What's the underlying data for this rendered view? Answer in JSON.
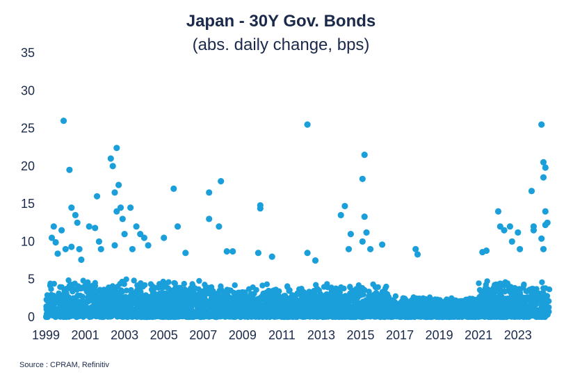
{
  "chart_data": {
    "type": "scatter",
    "title": "Japan - 30Y Gov. Bonds",
    "subtitle": "(abs. daily change, bps)",
    "source": "Source : CPRAM, Refinitiv",
    "xlabel": "",
    "ylabel": "",
    "xlim": [
      1999.0,
      2024.6
    ],
    "ylim": [
      0,
      35
    ],
    "x_tick_labels": [
      "1999",
      "2001",
      "2003",
      "2005",
      "2007",
      "2009",
      "2011",
      "2013",
      "2015",
      "2017",
      "2019",
      "2021",
      "2023"
    ],
    "y_tick_labels": [
      "0",
      "5",
      "10",
      "15",
      "20",
      "25",
      "30",
      "35"
    ],
    "marker_color": "#1a9fdb",
    "grid": false,
    "legend": "none",
    "dense_band": [
      {
        "x0": 1999.0,
        "x1": 2007.5,
        "ymax": 4.5
      },
      {
        "x0": 2007.5,
        "x1": 2012.0,
        "ymax": 4.0
      },
      {
        "x0": 2012.0,
        "x1": 2016.5,
        "ymax": 4.0
      },
      {
        "x0": 2016.5,
        "x1": 2021.0,
        "ymax": 2.5
      },
      {
        "x0": 2021.0,
        "x1": 2024.6,
        "ymax": 4.5
      }
    ],
    "points": [
      {
        "x": 1999.9,
        "y": 26.0
      },
      {
        "x": 2000.2,
        "y": 19.5
      },
      {
        "x": 2000.3,
        "y": 14.5
      },
      {
        "x": 2000.5,
        "y": 13.5
      },
      {
        "x": 2000.6,
        "y": 12.5
      },
      {
        "x": 1999.4,
        "y": 12.0
      },
      {
        "x": 1999.3,
        "y": 10.5
      },
      {
        "x": 1999.5,
        "y": 9.9
      },
      {
        "x": 1999.8,
        "y": 11.5
      },
      {
        "x": 2000.0,
        "y": 9.0
      },
      {
        "x": 2000.3,
        "y": 9.3
      },
      {
        "x": 2000.7,
        "y": 9.0
      },
      {
        "x": 2000.8,
        "y": 7.6
      },
      {
        "x": 1999.6,
        "y": 8.4
      },
      {
        "x": 2001.2,
        "y": 12.0
      },
      {
        "x": 2001.5,
        "y": 11.8
      },
      {
        "x": 2001.6,
        "y": 16.0
      },
      {
        "x": 2001.7,
        "y": 10.0
      },
      {
        "x": 2002.3,
        "y": 21.0
      },
      {
        "x": 2002.4,
        "y": 20.0
      },
      {
        "x": 2002.6,
        "y": 22.4
      },
      {
        "x": 2002.7,
        "y": 17.5
      },
      {
        "x": 2002.5,
        "y": 16.5
      },
      {
        "x": 2002.6,
        "y": 14.0
      },
      {
        "x": 2002.8,
        "y": 14.5
      },
      {
        "x": 2003.3,
        "y": 14.5
      },
      {
        "x": 2002.9,
        "y": 13.0
      },
      {
        "x": 2003.6,
        "y": 12.0
      },
      {
        "x": 2003.0,
        "y": 11.0
      },
      {
        "x": 2003.8,
        "y": 11.0
      },
      {
        "x": 2004.0,
        "y": 10.5
      },
      {
        "x": 2004.2,
        "y": 9.5
      },
      {
        "x": 2003.4,
        "y": 9.0
      },
      {
        "x": 2002.5,
        "y": 9.5
      },
      {
        "x": 2001.8,
        "y": 9.0
      },
      {
        "x": 2005.0,
        "y": 10.5
      },
      {
        "x": 2005.5,
        "y": 17.0
      },
      {
        "x": 2005.7,
        "y": 12.0
      },
      {
        "x": 2006.1,
        "y": 8.5
      },
      {
        "x": 2007.3,
        "y": 16.5
      },
      {
        "x": 2007.3,
        "y": 13.0
      },
      {
        "x": 2007.9,
        "y": 18.0
      },
      {
        "x": 2007.8,
        "y": 12.0
      },
      {
        "x": 2008.2,
        "y": 8.7
      },
      {
        "x": 2008.5,
        "y": 8.7
      },
      {
        "x": 2009.9,
        "y": 14.8
      },
      {
        "x": 2009.9,
        "y": 14.4
      },
      {
        "x": 2009.8,
        "y": 8.5
      },
      {
        "x": 2010.5,
        "y": 8.0
      },
      {
        "x": 2012.3,
        "y": 25.5
      },
      {
        "x": 2012.3,
        "y": 8.5
      },
      {
        "x": 2012.7,
        "y": 7.5
      },
      {
        "x": 2014.0,
        "y": 13.5
      },
      {
        "x": 2014.2,
        "y": 14.7
      },
      {
        "x": 2014.4,
        "y": 9.0
      },
      {
        "x": 2014.5,
        "y": 11.0
      },
      {
        "x": 2015.2,
        "y": 21.5
      },
      {
        "x": 2015.1,
        "y": 18.3
      },
      {
        "x": 2015.2,
        "y": 13.3
      },
      {
        "x": 2015.1,
        "y": 10.0
      },
      {
        "x": 2015.3,
        "y": 11.2
      },
      {
        "x": 2015.5,
        "y": 9.0
      },
      {
        "x": 2016.1,
        "y": 9.6
      },
      {
        "x": 2017.8,
        "y": 9.0
      },
      {
        "x": 2017.9,
        "y": 8.3
      },
      {
        "x": 2021.2,
        "y": 8.6
      },
      {
        "x": 2021.4,
        "y": 8.8
      },
      {
        "x": 2022.0,
        "y": 14.0
      },
      {
        "x": 2022.1,
        "y": 12.0
      },
      {
        "x": 2022.3,
        "y": 11.5
      },
      {
        "x": 2022.6,
        "y": 12.0
      },
      {
        "x": 2023.0,
        "y": 11.2
      },
      {
        "x": 2022.7,
        "y": 10.0
      },
      {
        "x": 2023.1,
        "y": 9.0
      },
      {
        "x": 2023.7,
        "y": 16.7
      },
      {
        "x": 2023.8,
        "y": 12.0
      },
      {
        "x": 2023.8,
        "y": 11.5
      },
      {
        "x": 2024.2,
        "y": 25.5
      },
      {
        "x": 2024.3,
        "y": 20.5
      },
      {
        "x": 2024.4,
        "y": 19.8
      },
      {
        "x": 2024.3,
        "y": 18.5
      },
      {
        "x": 2024.4,
        "y": 14.0
      },
      {
        "x": 2024.5,
        "y": 12.5
      },
      {
        "x": 2024.4,
        "y": 12.2
      },
      {
        "x": 2024.2,
        "y": 10.4
      },
      {
        "x": 2024.3,
        "y": 9.0
      }
    ]
  }
}
